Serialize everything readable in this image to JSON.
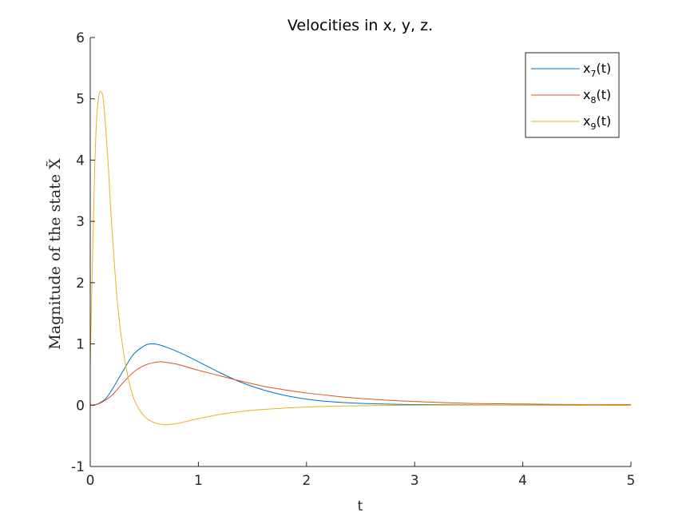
{
  "chart_data": {
    "type": "line",
    "title": "Velocities in x, y, z.",
    "xlabel": "t",
    "ylabel": "Magnitude of the state X̃",
    "xlim": [
      0,
      5
    ],
    "ylim": [
      -1,
      6
    ],
    "xticks": [
      "0",
      "1",
      "2",
      "3",
      "4",
      "5"
    ],
    "yticks": [
      "-1",
      "0",
      "1",
      "2",
      "3",
      "4",
      "5",
      "6"
    ],
    "grid": false,
    "legend_position": "top-right",
    "series": [
      {
        "name": "x7(t)",
        "label_base": "x",
        "label_sub": "7",
        "label_tail": "(t)",
        "color": "#0072BD",
        "x": [
          0,
          0.05,
          0.1,
          0.15,
          0.2,
          0.3,
          0.4,
          0.5,
          0.55,
          0.6,
          0.65,
          0.7,
          0.8,
          0.9,
          1.0,
          1.2,
          1.4,
          1.6,
          1.8,
          2.0,
          2.2,
          2.5,
          3.0,
          3.5,
          4.0,
          5.0
        ],
        "y": [
          0,
          0.01,
          0.05,
          0.12,
          0.25,
          0.55,
          0.83,
          0.97,
          1.0,
          1.0,
          0.98,
          0.95,
          0.88,
          0.8,
          0.71,
          0.53,
          0.37,
          0.25,
          0.16,
          0.1,
          0.06,
          0.03,
          0.01,
          0.005,
          0.002,
          0
        ]
      },
      {
        "name": "x8(t)",
        "label_base": "x",
        "label_sub": "8",
        "label_tail": "(t)",
        "color": "#D95319",
        "x": [
          0,
          0.05,
          0.1,
          0.2,
          0.3,
          0.4,
          0.5,
          0.6,
          0.65,
          0.7,
          0.8,
          0.9,
          1.0,
          1.2,
          1.4,
          1.6,
          1.8,
          2.0,
          2.2,
          2.5,
          3.0,
          3.5,
          4.0,
          4.5,
          5.0
        ],
        "y": [
          0,
          0.01,
          0.04,
          0.16,
          0.36,
          0.54,
          0.65,
          0.7,
          0.71,
          0.7,
          0.67,
          0.62,
          0.57,
          0.48,
          0.39,
          0.31,
          0.25,
          0.2,
          0.16,
          0.11,
          0.06,
          0.03,
          0.02,
          0.01,
          0.01
        ]
      },
      {
        "name": "x9(t)",
        "label_base": "x",
        "label_sub": "9",
        "label_tail": "(t)",
        "color": "#EDB120",
        "x": [
          0,
          0.02,
          0.04,
          0.06,
          0.08,
          0.1,
          0.12,
          0.14,
          0.16,
          0.18,
          0.2,
          0.25,
          0.3,
          0.35,
          0.4,
          0.45,
          0.5,
          0.55,
          0.6,
          0.65,
          0.7,
          0.75,
          0.8,
          0.9,
          1.0,
          1.2,
          1.4,
          1.6,
          2.0,
          2.5,
          3.0,
          3.5,
          4.0,
          5.0
        ],
        "y": [
          0.7,
          2.3,
          3.8,
          4.7,
          5.05,
          5.12,
          5.0,
          4.6,
          4.1,
          3.5,
          2.9,
          1.7,
          0.95,
          0.45,
          0.12,
          -0.06,
          -0.18,
          -0.25,
          -0.29,
          -0.31,
          -0.32,
          -0.31,
          -0.3,
          -0.26,
          -0.22,
          -0.15,
          -0.1,
          -0.07,
          -0.03,
          -0.01,
          0,
          0,
          0,
          0
        ]
      }
    ]
  }
}
